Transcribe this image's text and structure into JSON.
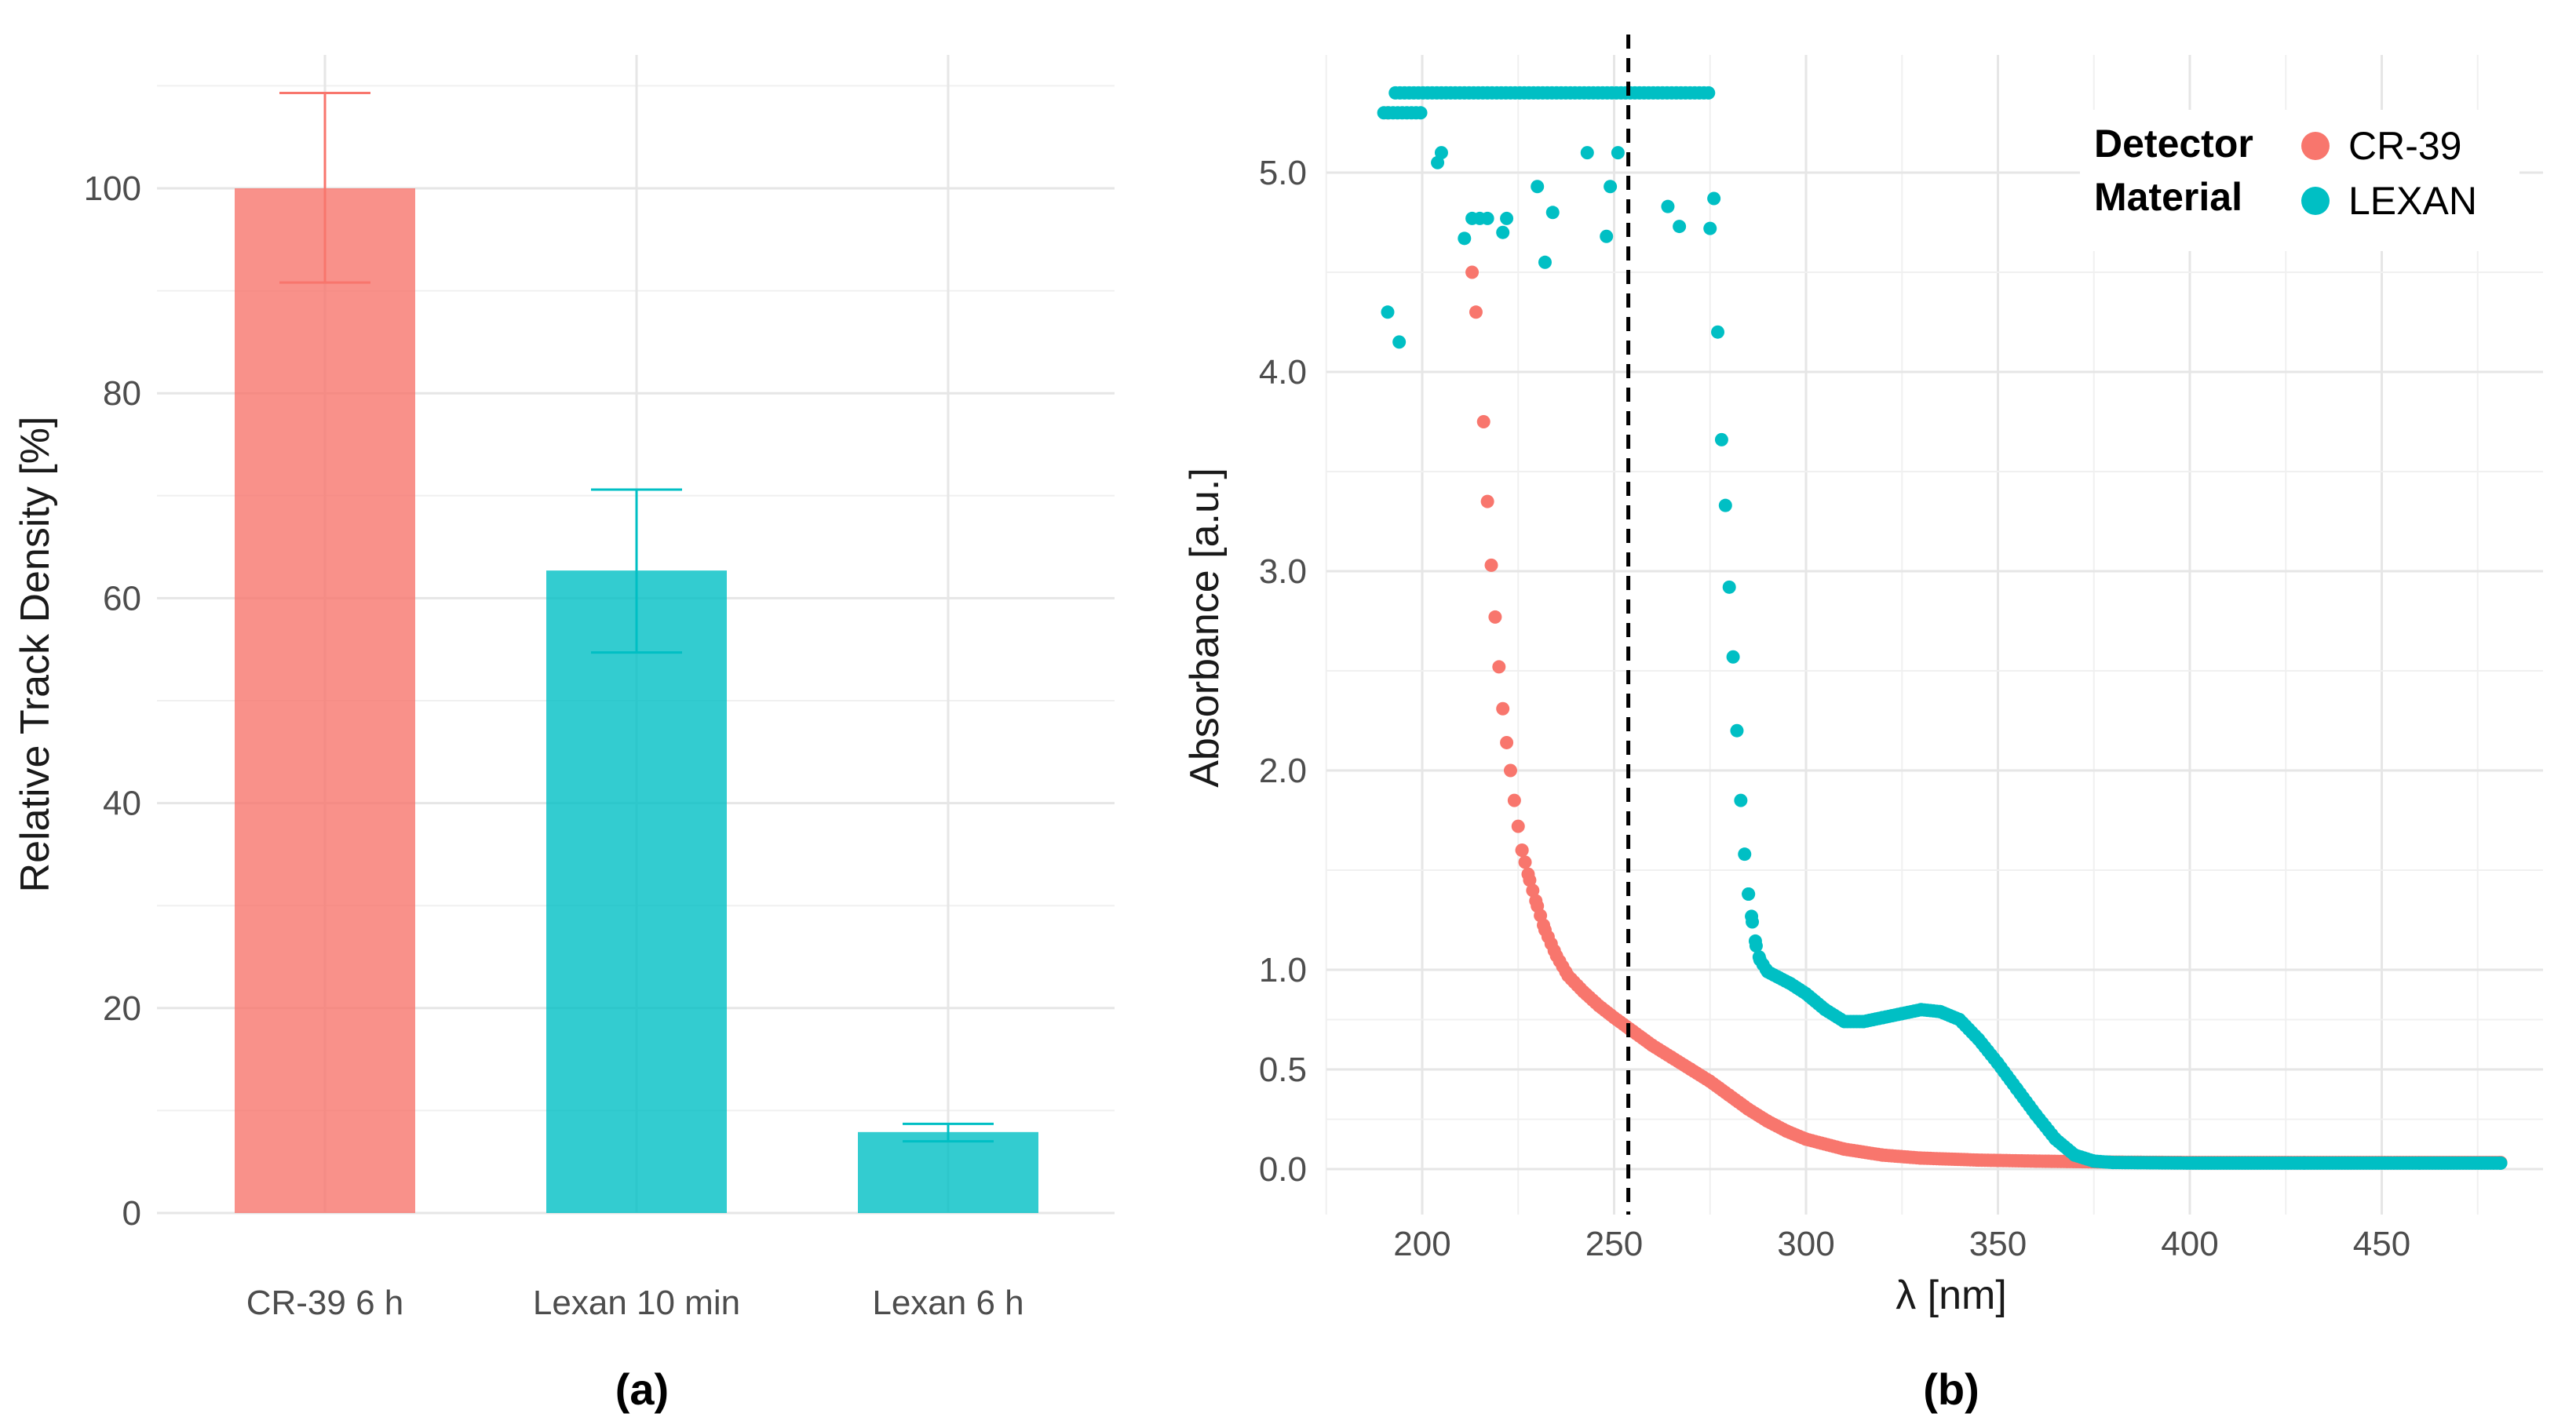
{
  "chart_data": [
    {
      "type": "bar",
      "panel_label": "(a)",
      "title": "",
      "xlabel": "",
      "ylabel": "Relative Track Density [%]",
      "ylim": [
        0,
        112
      ],
      "y_ticks": [
        0,
        20,
        40,
        60,
        80,
        100
      ],
      "grid": true,
      "categories": [
        "CR-39 6 h",
        "Lexan 10 min",
        "Lexan 6 h"
      ],
      "values": [
        100,
        62.7,
        7.9
      ],
      "error_low": [
        90.8,
        54.7,
        7.0
      ],
      "error_high": [
        109.3,
        70.6,
        8.7
      ],
      "colors": [
        "#F8766D",
        "#00BFC4",
        "#00BFC4"
      ]
    },
    {
      "type": "scatter",
      "panel_label": "(b)",
      "title": "",
      "xlabel": "λ [nm]",
      "ylabel": "Absorbance [a.u.]",
      "xlim": [
        180,
        490
      ],
      "x_ticks": [
        200,
        250,
        300,
        350,
        400,
        450
      ],
      "y_ticks": [
        0.0,
        0.5,
        1.0,
        2.0,
        3.0,
        4.0,
        5.0
      ],
      "y_tick_labels": [
        "0.0",
        "0.5",
        "1.0",
        "2.0",
        "3.0",
        "4.0",
        "5.0"
      ],
      "y_scale_note": "piecewise: 0-1 expanded, 1-5.4 linear",
      "vline_x": 253.7,
      "vline_style": "dashed",
      "legend": {
        "title_line1": "Detector",
        "title_line2": "Material",
        "position": "top-right",
        "entries": [
          {
            "name": "CR-39",
            "color": "#F8766D"
          },
          {
            "name": "LEXAN",
            "color": "#00BFC4"
          }
        ]
      },
      "series": [
        {
          "name": "CR-39",
          "color": "#F8766D",
          "curve": [
            [
              213,
              4.5
            ],
            [
              216,
              3.75
            ],
            [
              217,
              3.35
            ],
            [
              218,
              3.03
            ],
            [
              219,
              2.77
            ],
            [
              220,
              2.52
            ],
            [
              221,
              2.31
            ],
            [
              222,
              2.14
            ],
            [
              223,
              2.0
            ],
            [
              224,
              1.85
            ],
            [
              225,
              1.72
            ],
            [
              226,
              1.6
            ],
            [
              228,
              1.45
            ],
            [
              230,
              1.32
            ],
            [
              232,
              1.2
            ],
            [
              235,
              1.07
            ],
            [
              238,
              0.97
            ],
            [
              242,
              0.89
            ],
            [
              246,
              0.82
            ],
            [
              250,
              0.76
            ],
            [
              255,
              0.69
            ],
            [
              260,
              0.62
            ],
            [
              265,
              0.56
            ],
            [
              270,
              0.5
            ],
            [
              275,
              0.44
            ],
            [
              280,
              0.37
            ],
            [
              285,
              0.3
            ],
            [
              290,
              0.24
            ],
            [
              295,
              0.19
            ],
            [
              300,
              0.15
            ],
            [
              310,
              0.1
            ],
            [
              320,
              0.07
            ],
            [
              330,
              0.055
            ],
            [
              345,
              0.045
            ],
            [
              360,
              0.04
            ],
            [
              380,
              0.035
            ],
            [
              400,
              0.033
            ],
            [
              430,
              0.033
            ],
            [
              481,
              0.033
            ]
          ],
          "extra_points": [
            [
              191,
              5.3
            ],
            [
              214,
              4.3
            ]
          ]
        },
        {
          "name": "LEXAN",
          "color": "#00BFC4",
          "saturated_top": [
            [
              190,
              5.3
            ],
            [
              200,
              5.3
            ],
            [
              193,
              5.4
            ],
            [
              275,
              5.4
            ]
          ],
          "noise_points": [
            [
              191,
              4.3
            ],
            [
              194,
              4.15
            ],
            [
              204,
              5.05
            ],
            [
              205,
              5.1
            ],
            [
              211,
              4.67
            ],
            [
              213,
              4.77
            ],
            [
              215,
              4.77
            ],
            [
              217,
              4.77
            ],
            [
              221,
              4.7
            ],
            [
              222,
              4.77
            ],
            [
              230,
              4.93
            ],
            [
              232,
              4.55
            ],
            [
              234,
              4.8
            ],
            [
              243,
              5.1
            ],
            [
              248,
              4.68
            ],
            [
              249,
              4.93
            ],
            [
              251,
              5.1
            ],
            [
              264,
              4.83
            ],
            [
              267,
              4.73
            ],
            [
              275,
              4.72
            ],
            [
              276,
              4.87
            ],
            [
              277,
              4.2
            ]
          ],
          "curve": [
            [
              278,
              3.66
            ],
            [
              279,
              3.33
            ],
            [
              280,
              2.92
            ],
            [
              281,
              2.57
            ],
            [
              282,
              2.2
            ],
            [
              283,
              1.85
            ],
            [
              284,
              1.58
            ],
            [
              285,
              1.38
            ],
            [
              286,
              1.24
            ],
            [
              287,
              1.12
            ],
            [
              288,
              1.05
            ],
            [
              290,
              0.99
            ],
            [
              293,
              0.96
            ],
            [
              296,
              0.93
            ],
            [
              300,
              0.88
            ],
            [
              305,
              0.8
            ],
            [
              310,
              0.74
            ],
            [
              315,
              0.74
            ],
            [
              320,
              0.76
            ],
            [
              325,
              0.78
            ],
            [
              330,
              0.8
            ],
            [
              335,
              0.79
            ],
            [
              340,
              0.75
            ],
            [
              345,
              0.65
            ],
            [
              350,
              0.53
            ],
            [
              355,
              0.4
            ],
            [
              360,
              0.27
            ],
            [
              365,
              0.15
            ],
            [
              370,
              0.07
            ],
            [
              375,
              0.04
            ],
            [
              380,
              0.033
            ],
            [
              400,
              0.03
            ],
            [
              430,
              0.03
            ],
            [
              460,
              0.03
            ],
            [
              481,
              0.03
            ]
          ]
        }
      ]
    }
  ]
}
